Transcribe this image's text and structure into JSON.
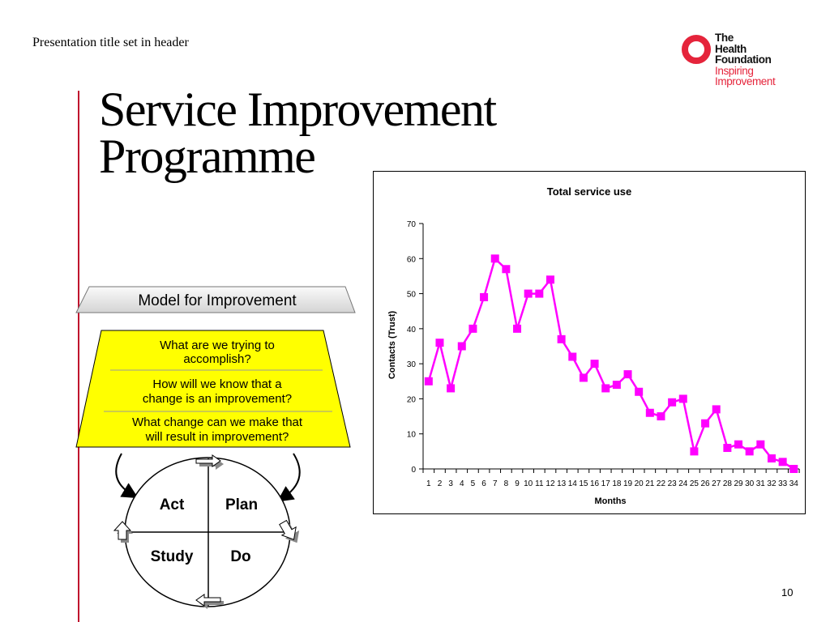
{
  "header": {
    "text": "Presentation title set in header"
  },
  "logo": {
    "line1": "The",
    "line2": "Health",
    "line3": "Foundation",
    "line4": "Inspiring",
    "line5": "Improvement",
    "ring_color": "#e5243b"
  },
  "slide": {
    "title_line1": "Service Improvement",
    "title_line2": "Programme",
    "accent_color": "#c0102e",
    "page_number": "10"
  },
  "model": {
    "heading": "Model for Improvement",
    "questions": [
      {
        "line1": "What are we trying to",
        "line2": "accomplish?"
      },
      {
        "line1": "How will we know that a",
        "line2": "change is an improvement?"
      },
      {
        "line1": "What change can we make that",
        "line2": "will result in improvement?"
      }
    ],
    "cycle": [
      "Act",
      "Plan",
      "Study",
      "Do"
    ],
    "panel_color": "#ffff00"
  },
  "chart_data": {
    "type": "line",
    "title": "Total service use",
    "xlabel": "Months",
    "ylabel": "Contacts (Trust)",
    "ylim": [
      0,
      70
    ],
    "yticks": [
      0,
      10,
      20,
      30,
      40,
      50,
      60,
      70
    ],
    "grid": false,
    "categories": [
      "1",
      "2",
      "3",
      "4",
      "5",
      "6",
      "7",
      "8",
      "9",
      "10",
      "11",
      "12",
      "13",
      "14",
      "15",
      "16",
      "17",
      "18",
      "19",
      "20",
      "21",
      "22",
      "23",
      "24",
      "25",
      "26",
      "27",
      "28",
      "29",
      "30",
      "31",
      "32",
      "33",
      "34"
    ],
    "series": [
      {
        "color": "#ff00ff",
        "values": [
          25,
          36,
          23,
          35,
          40,
          49,
          60,
          57,
          40,
          50,
          50,
          54,
          37,
          32,
          26,
          30,
          23,
          24,
          27,
          22,
          16,
          15,
          19,
          20,
          5,
          13,
          17,
          6,
          7,
          5,
          7,
          3,
          2,
          0
        ]
      }
    ]
  }
}
